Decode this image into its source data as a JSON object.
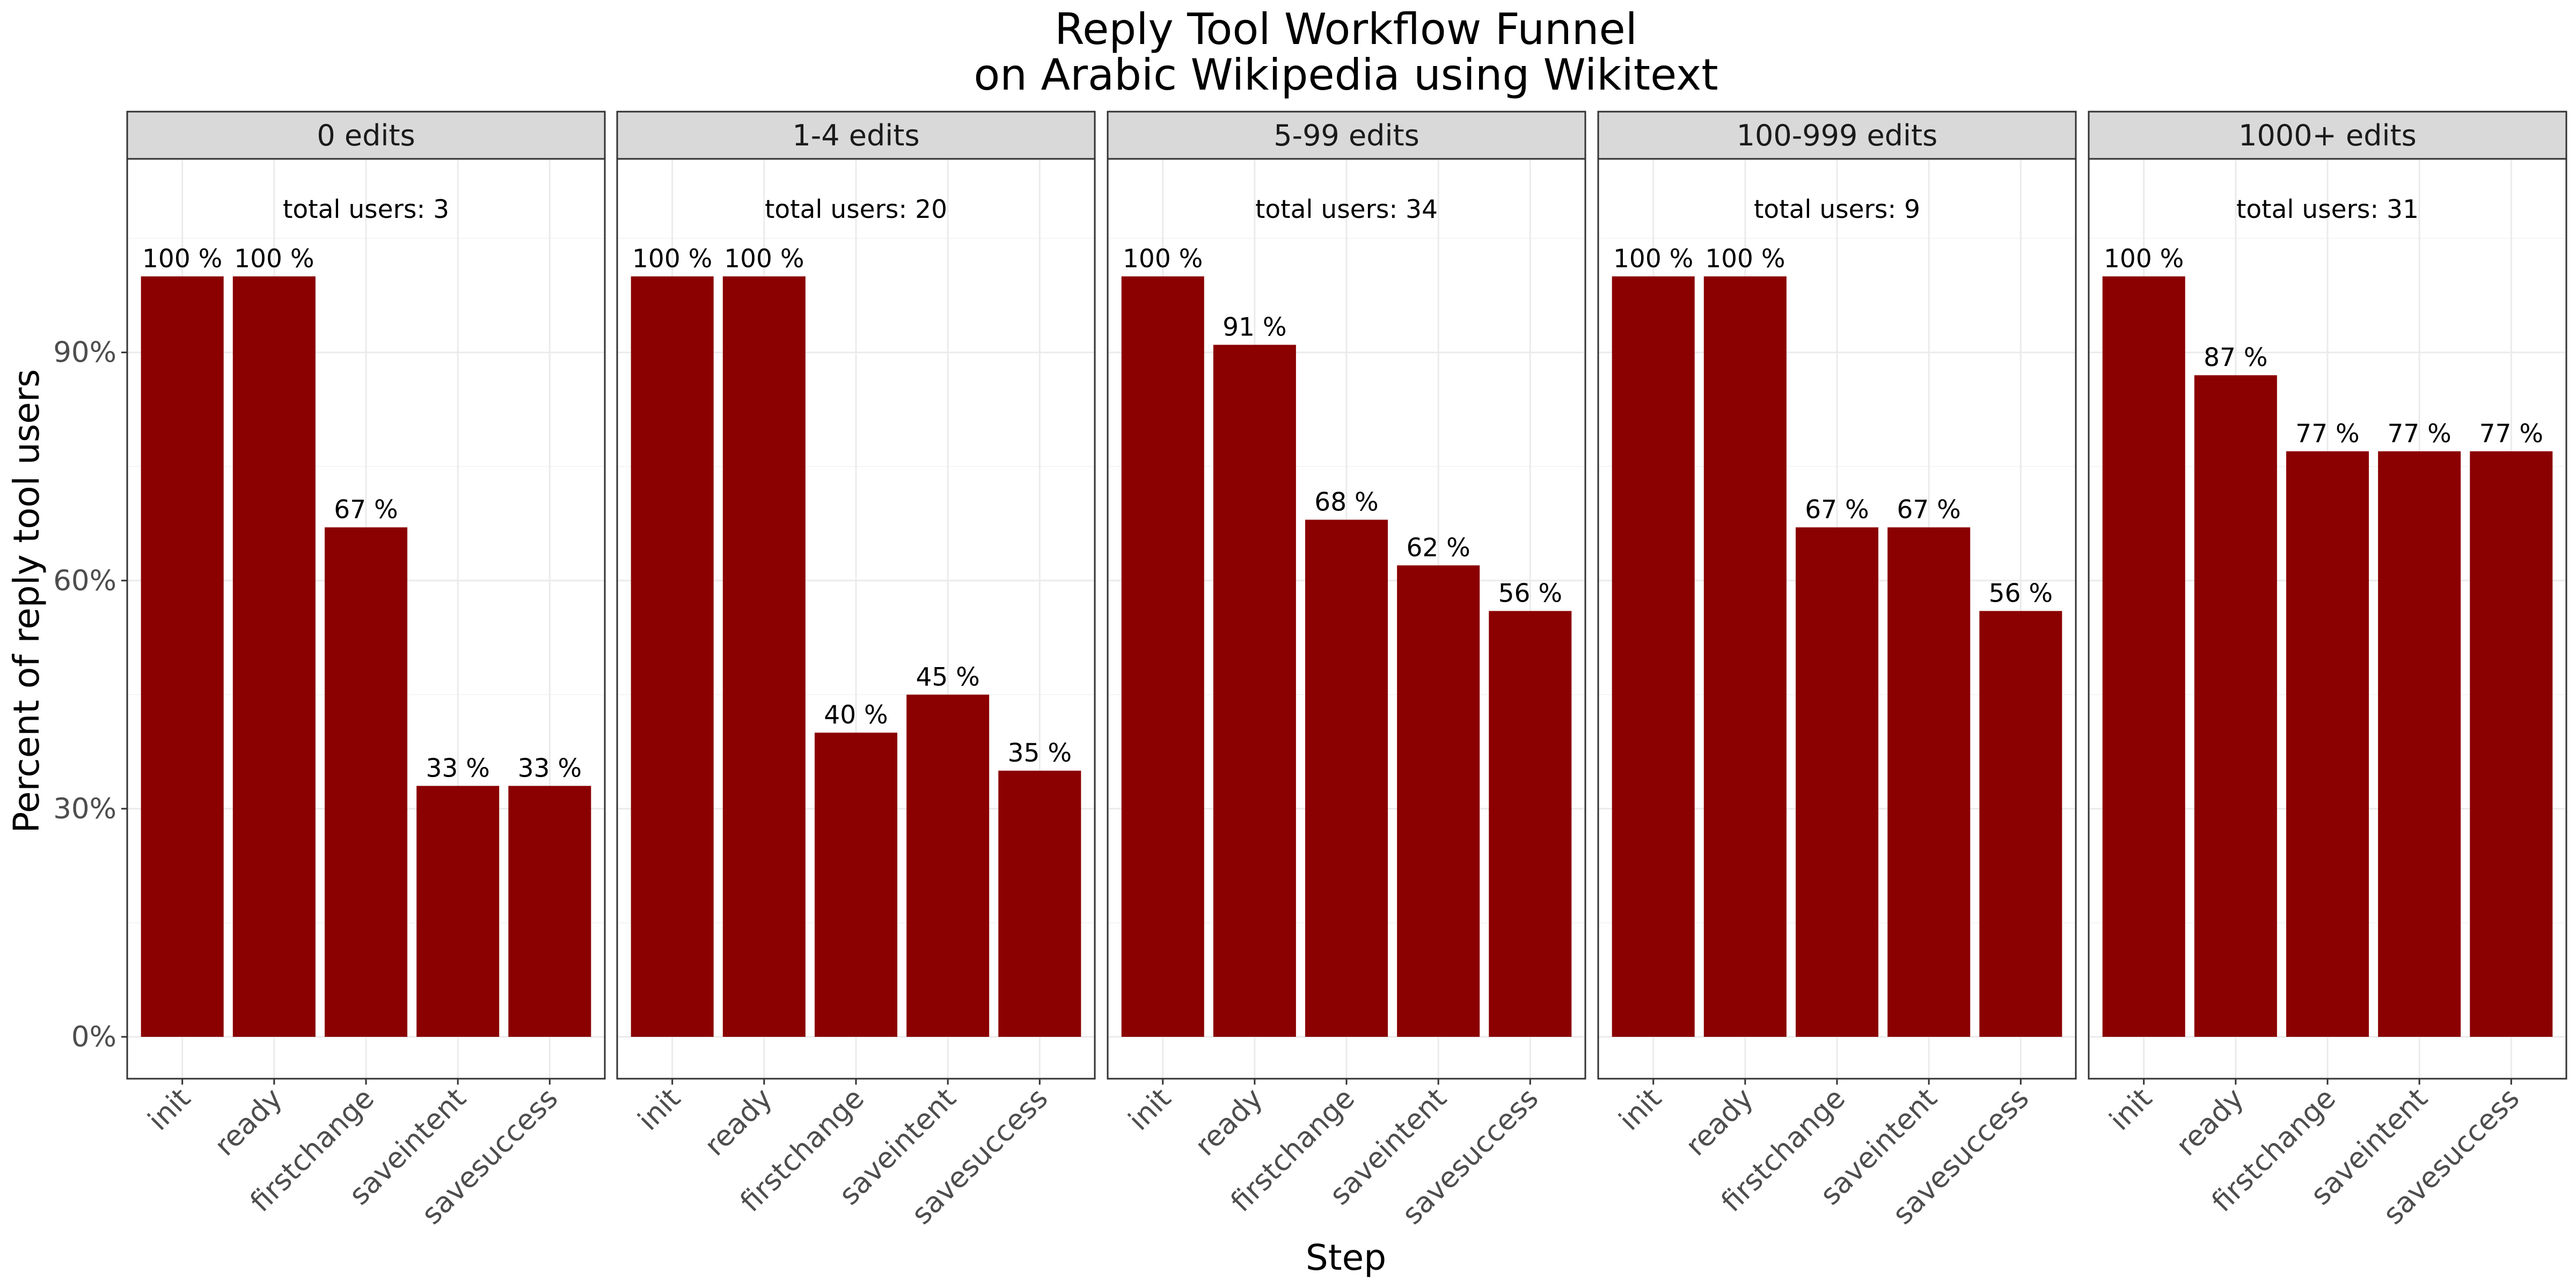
{
  "chart_data": {
    "type": "bar",
    "title": "Reply Tool Workflow Funnel",
    "subtitle": "on Arabic Wikipedia using Wikitext",
    "xlabel": "Step",
    "ylabel": "Percent of reply tool users",
    "ylim": [
      0,
      1.15
    ],
    "yticks": [
      0,
      0.3,
      0.6,
      0.9
    ],
    "ytick_labels": [
      "0%",
      "30%",
      "60%",
      "90%"
    ],
    "grid": true,
    "bar_color": "#8B0000",
    "categories": [
      "init",
      "ready",
      "firstchange",
      "saveintent",
      "savesuccess"
    ],
    "facets": [
      {
        "name": "0 edits",
        "total_label": "total users: 3",
        "values": [
          1.0,
          1.0,
          0.67,
          0.33,
          0.33
        ],
        "labels": [
          "100 %",
          "100 %",
          "67 %",
          "33 %",
          "33 %"
        ]
      },
      {
        "name": "1-4 edits",
        "total_label": "total users: 20",
        "values": [
          1.0,
          1.0,
          0.4,
          0.45,
          0.35
        ],
        "labels": [
          "100 %",
          "100 %",
          "40 %",
          "45 %",
          "35 %"
        ]
      },
      {
        "name": "5-99 edits",
        "total_label": "total users: 34",
        "values": [
          1.0,
          0.91,
          0.68,
          0.62,
          0.56
        ],
        "labels": [
          "100 %",
          "91 %",
          "68 %",
          "62 %",
          "56 %"
        ]
      },
      {
        "name": "100-999 edits",
        "total_label": "total users: 9",
        "values": [
          1.0,
          1.0,
          0.67,
          0.67,
          0.56
        ],
        "labels": [
          "100 %",
          "100 %",
          "67 %",
          "67 %",
          "56 %"
        ]
      },
      {
        "name": "1000+ edits",
        "total_label": "total users: 31",
        "values": [
          1.0,
          0.87,
          0.77,
          0.77,
          0.77
        ],
        "labels": [
          "100 %",
          "87 %",
          "77 %",
          "77 %",
          "77 %"
        ]
      }
    ]
  }
}
